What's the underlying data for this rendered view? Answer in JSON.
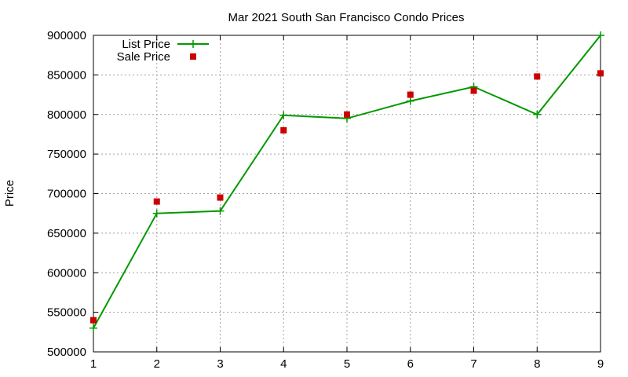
{
  "chart_data": {
    "type": "line",
    "title": "Mar 2021 South San Francisco Condo Prices",
    "xlabel": "",
    "ylabel": "Price",
    "x": [
      1,
      2,
      3,
      4,
      5,
      6,
      7,
      8,
      9
    ],
    "xlim": [
      1,
      9
    ],
    "ylim": [
      500000,
      900000
    ],
    "xticks": [
      "1",
      "2",
      "3",
      "4",
      "5",
      "6",
      "7",
      "8",
      "9"
    ],
    "yticks": [
      "500000",
      "550000",
      "600000",
      "650000",
      "700000",
      "750000",
      "800000",
      "850000",
      "900000"
    ],
    "grid": true,
    "legend_position": "top-left",
    "series": [
      {
        "name": "List Price",
        "style": "line-with-plus-markers",
        "color": "#009900",
        "values": [
          530000,
          675000,
          678000,
          799000,
          795000,
          817000,
          835000,
          800000,
          900000
        ]
      },
      {
        "name": "Sale Price",
        "style": "square-markers",
        "color": "#cc0000",
        "values": [
          540000,
          690000,
          695000,
          780000,
          800000,
          825000,
          830000,
          848000,
          852000
        ]
      }
    ]
  }
}
